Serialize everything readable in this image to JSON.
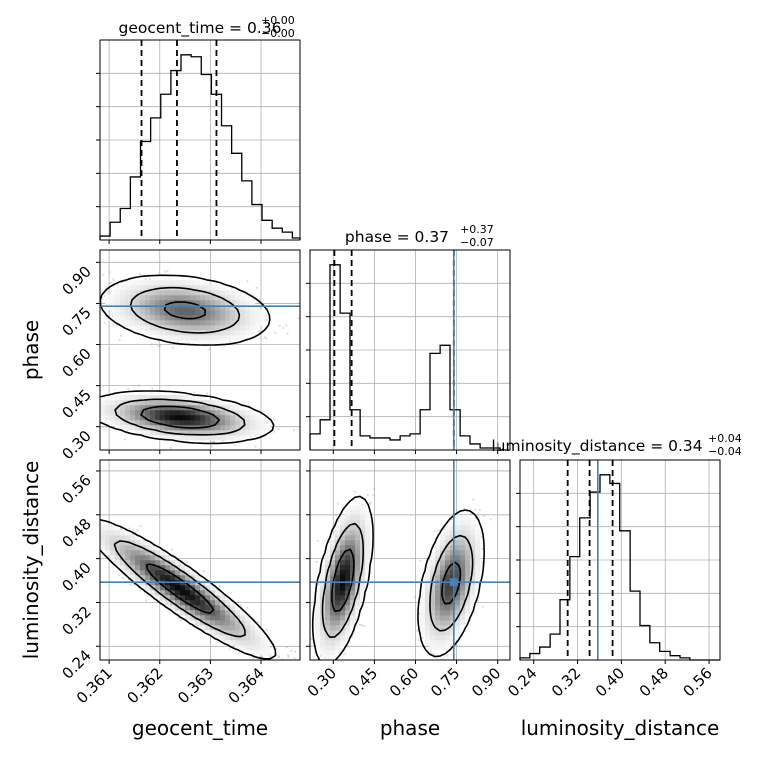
{
  "chart_data": {
    "type": "corner",
    "parameters": [
      {
        "name": "geocent_time",
        "range": [
          0.36082,
          0.36477
        ],
        "ticks": [
          0.361,
          0.362,
          0.363,
          0.364
        ],
        "tick_labels": [
          "0.361",
          "0.362",
          "0.363",
          "0.364"
        ]
      },
      {
        "name": "phase",
        "range": [
          0.215,
          0.945
        ],
        "ticks": [
          0.3,
          0.45,
          0.6,
          0.75,
          0.9
        ],
        "tick_labels": [
          "0.30",
          "0.45",
          "0.60",
          "0.75",
          "0.90"
        ]
      },
      {
        "name": "luminosity_distance",
        "range": [
          0.215,
          0.58
        ],
        "ticks": [
          0.24,
          0.32,
          0.4,
          0.48,
          0.56
        ],
        "tick_labels": [
          "0.24",
          "0.32",
          "0.40",
          "0.48",
          "0.56"
        ]
      }
    ],
    "titles": [
      {
        "label": "geocent_time = 0.36",
        "sup": "+0.00",
        "sub": "−0.00"
      },
      {
        "label": "phase = 0.37",
        "sup": "+0.37",
        "sub": "−0.07"
      },
      {
        "label": "luminosity_distance = 0.34",
        "sup": "+0.04",
        "sub": "−0.04"
      }
    ],
    "histograms": [
      {
        "param": "geocent_time",
        "edges": [
          0.36082,
          0.36102,
          0.36122,
          0.36142,
          0.36162,
          0.36182,
          0.36202,
          0.36222,
          0.36242,
          0.36262,
          0.36282,
          0.36302,
          0.36322,
          0.36342,
          0.36362,
          0.36382,
          0.36402,
          0.36422,
          0.36442,
          0.36462,
          0.36477
        ],
        "counts": [
          0.02,
          0.09,
          0.16,
          0.32,
          0.5,
          0.62,
          0.74,
          0.86,
          0.94,
          0.93,
          0.84,
          0.74,
          0.58,
          0.44,
          0.3,
          0.18,
          0.1,
          0.06,
          0.04,
          0.01
        ],
        "quantiles": [
          0.36164,
          0.36234,
          0.36312
        ]
      },
      {
        "param": "phase",
        "edges": [
          0.215,
          0.252,
          0.288,
          0.325,
          0.361,
          0.398,
          0.434,
          0.471,
          0.507,
          0.544,
          0.58,
          0.617,
          0.653,
          0.69,
          0.726,
          0.763,
          0.799,
          0.836,
          0.872,
          0.909,
          0.945
        ],
        "counts": [
          0.08,
          0.15,
          0.92,
          0.68,
          0.2,
          0.07,
          0.06,
          0.06,
          0.05,
          0.07,
          0.08,
          0.2,
          0.48,
          0.52,
          0.2,
          0.07,
          0.03,
          0.01,
          0.01,
          0.0
        ],
        "quantiles": [
          0.304,
          0.367,
          0.74
        ],
        "truth": 0.74
      },
      {
        "param": "luminosity_distance",
        "edges": [
          0.215,
          0.233,
          0.251,
          0.27,
          0.288,
          0.306,
          0.324,
          0.343,
          0.361,
          0.379,
          0.397,
          0.416,
          0.434,
          0.452,
          0.47,
          0.489,
          0.507,
          0.525,
          0.543,
          0.562,
          0.58
        ],
        "counts": [
          0.01,
          0.03,
          0.06,
          0.12,
          0.28,
          0.48,
          0.66,
          0.78,
          0.86,
          0.82,
          0.6,
          0.32,
          0.16,
          0.08,
          0.04,
          0.02,
          0.01,
          0.0,
          0.0,
          0.0
        ],
        "quantiles": [
          0.302,
          0.342,
          0.384
        ],
        "truth": 0.357
      }
    ],
    "truths": {
      "phase": 0.74,
      "luminosity_distance": 0.357
    },
    "pairs": [
      {
        "x": "geocent_time",
        "y": "phase",
        "modes": [
          {
            "cx": 0.3625,
            "cy": 0.725,
            "sx": 0.00058,
            "sy": 0.044,
            "corr": -0.25,
            "weight": 0.45
          },
          {
            "cx": 0.3624,
            "cy": 0.335,
            "sx": 0.0006,
            "sy": 0.03,
            "corr": -0.35,
            "weight": 0.55
          }
        ]
      },
      {
        "x": "geocent_time",
        "y": "luminosity_distance",
        "modes": [
          {
            "cx": 0.3624,
            "cy": 0.345,
            "sx": 0.00065,
            "sy": 0.044,
            "corr": -0.92,
            "weight": 1.0
          }
        ]
      },
      {
        "x": "phase",
        "y": "luminosity_distance",
        "modes": [
          {
            "cx": 0.335,
            "cy": 0.36,
            "sx": 0.035,
            "sy": 0.05,
            "corr": 0.55,
            "weight": 0.55
          },
          {
            "cx": 0.73,
            "cy": 0.355,
            "sx": 0.04,
            "sy": 0.045,
            "corr": 0.45,
            "weight": 0.45
          }
        ]
      }
    ],
    "colors": {
      "hist": "#000000",
      "truth": "#4682b4",
      "points": "#9e9e9e",
      "grid": "#b0b0b0"
    },
    "grid": true
  }
}
